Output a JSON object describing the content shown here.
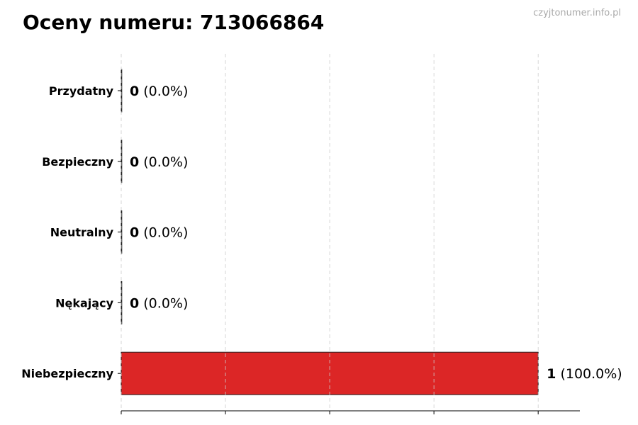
{
  "chart_data": {
    "type": "bar",
    "orientation": "horizontal",
    "title": "Oceny numeru: 713066864",
    "watermark": "czyjtonumer.info.pl",
    "categories": [
      "Przydatny",
      "Bezpieczny",
      "Neutralny",
      "Nękający",
      "Niebezpieczny"
    ],
    "values": [
      0,
      0,
      0,
      0,
      1
    ],
    "value_labels": [
      "0",
      "0",
      "0",
      "0",
      "1"
    ],
    "percent_labels": [
      "(0.0%)",
      "(0.0%)",
      "(0.0%)",
      "(0.0%)",
      "(100.0%)"
    ],
    "colors": [
      "#2e9e44",
      "#2e9e44",
      "#9e9e9e",
      "#e08a1e",
      "#dc2626"
    ],
    "xlim": [
      0,
      1.1
    ],
    "xticks": [
      0,
      0.25,
      0.5,
      0.75,
      1
    ],
    "grid": "x-dashed",
    "xlabel": "",
    "ylabel": ""
  }
}
